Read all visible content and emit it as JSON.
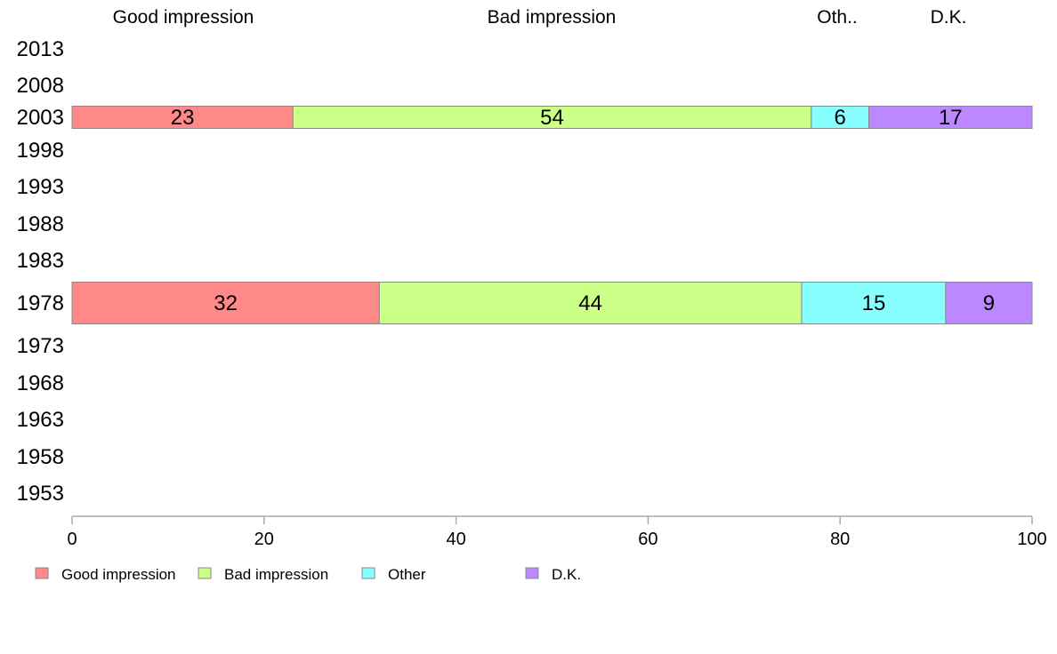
{
  "chart_data": {
    "type": "bar",
    "orientation": "horizontal",
    "stacked": true,
    "title": "",
    "xlabel": "",
    "ylabel": "",
    "xlim": [
      0,
      100
    ],
    "x_ticks": [
      0,
      20,
      40,
      60,
      80,
      100
    ],
    "categories": [
      "2013",
      "2008",
      "2003",
      "1998",
      "1993",
      "1988",
      "1983",
      "1978",
      "1973",
      "1968",
      "1963",
      "1958",
      "1953"
    ],
    "column_headers": [
      "Good impression",
      "Bad impression",
      "Oth..",
      "D.K."
    ],
    "series": [
      {
        "name": "Good impression",
        "color": "#ff8888",
        "values": [
          null,
          null,
          23,
          null,
          null,
          null,
          null,
          32,
          null,
          null,
          null,
          null,
          null
        ]
      },
      {
        "name": "Bad impression",
        "color": "#ccff88",
        "values": [
          null,
          null,
          54,
          null,
          null,
          null,
          null,
          44,
          null,
          null,
          null,
          null,
          null
        ]
      },
      {
        "name": "Other",
        "color": "#88ffff",
        "values": [
          null,
          null,
          6,
          null,
          null,
          null,
          null,
          15,
          null,
          null,
          null,
          null,
          null
        ]
      },
      {
        "name": "D.K.",
        "color": "#bb88ff",
        "values": [
          null,
          null,
          17,
          null,
          null,
          null,
          null,
          9,
          null,
          null,
          null,
          null,
          null
        ]
      }
    ],
    "legend_position": "bottom-left",
    "grid": false
  }
}
